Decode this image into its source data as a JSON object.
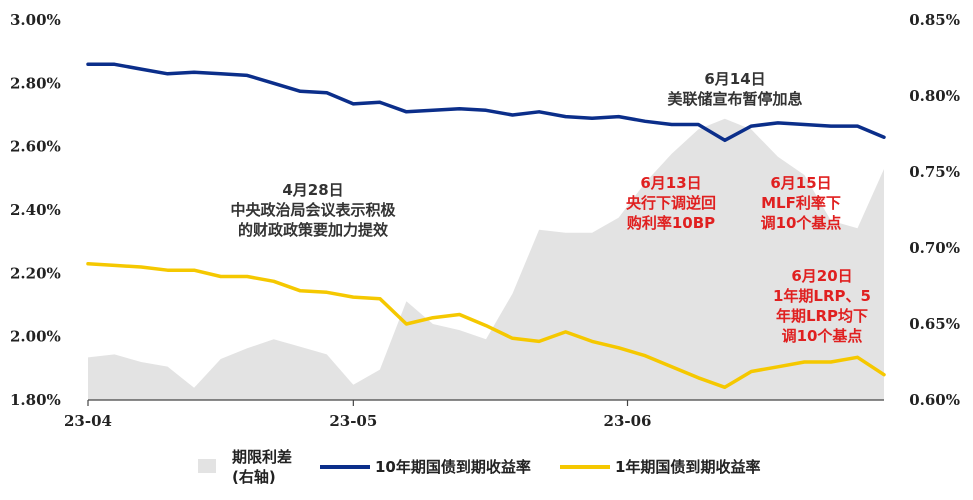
{
  "chart_data": {
    "type": "line",
    "x": [
      "23-04-01",
      "23-04-04",
      "23-04-07",
      "23-04-10",
      "23-04-13",
      "23-04-16",
      "23-04-19",
      "23-04-22",
      "23-04-25",
      "23-04-28",
      "23-05-01",
      "23-05-04",
      "23-05-07",
      "23-05-10",
      "23-05-13",
      "23-05-16",
      "23-05-19",
      "23-05-22",
      "23-05-25",
      "23-05-28",
      "23-05-31",
      "23-06-03",
      "23-06-06",
      "23-06-09",
      "23-06-12",
      "23-06-15",
      "23-06-18",
      "23-06-21",
      "23-06-24",
      "23-06-27",
      "23-06-29"
    ],
    "x_ticks": [
      "23-04",
      "23-05",
      "23-06"
    ],
    "y_left": {
      "ticks": [
        "1.80%",
        "2.00%",
        "2.20%",
        "2.40%",
        "2.60%",
        "2.80%",
        "3.00%"
      ],
      "ylim": [
        1.8,
        3.0
      ]
    },
    "y_right": {
      "ticks": [
        "0.60%",
        "0.65%",
        "0.70%",
        "0.75%",
        "0.80%",
        "0.85%"
      ],
      "ylim": [
        0.6,
        0.85
      ]
    },
    "series": [
      {
        "name": "10年期国债到期收益率",
        "axis": "left",
        "color": "#0b2e8a",
        "values": [
          2.86,
          2.86,
          2.845,
          2.83,
          2.835,
          2.83,
          2.825,
          2.8,
          2.775,
          2.77,
          2.735,
          2.74,
          2.71,
          2.715,
          2.72,
          2.715,
          2.7,
          2.71,
          2.695,
          2.69,
          2.695,
          2.68,
          2.67,
          2.67,
          2.62,
          2.665,
          2.675,
          2.67,
          2.665,
          2.665,
          2.63
        ]
      },
      {
        "name": "1年期国债到期收益率",
        "axis": "left",
        "color": "#f5c800",
        "values": [
          2.23,
          2.225,
          2.22,
          2.21,
          2.21,
          2.19,
          2.19,
          2.175,
          2.145,
          2.14,
          2.125,
          2.12,
          2.04,
          2.06,
          2.07,
          2.035,
          1.995,
          1.985,
          2.015,
          1.985,
          1.965,
          1.94,
          1.905,
          1.87,
          1.84,
          1.89,
          1.905,
          1.92,
          1.92,
          1.935,
          1.88
        ]
      },
      {
        "name": "期限利差 (右轴)",
        "axis": "right",
        "color": "#e3e3e3",
        "type": "area",
        "values": [
          0.628,
          0.63,
          0.625,
          0.622,
          0.608,
          0.627,
          0.634,
          0.64,
          0.635,
          0.63,
          0.61,
          0.62,
          0.665,
          0.65,
          0.646,
          0.64,
          0.67,
          0.712,
          0.71,
          0.71,
          0.72,
          0.743,
          0.762,
          0.778,
          0.785,
          0.778,
          0.76,
          0.748,
          0.718,
          0.713,
          0.752
        ]
      }
    ],
    "annotations": [
      {
        "lines": [
          "4月28日",
          "中央政治局会议表示积极",
          "的财政政策要加力提效"
        ],
        "color": "black"
      },
      {
        "lines": [
          "6月14日",
          "美联储宣布暂停加息"
        ],
        "color": "black"
      },
      {
        "lines": [
          "6月13日",
          "央行下调逆回",
          "购利率10BP"
        ],
        "color": "red"
      },
      {
        "lines": [
          "6月15日",
          "MLF利率下",
          "调10个基点"
        ],
        "color": "red"
      },
      {
        "lines": [
          "6月20日",
          "1年期LRP、5",
          "年期LRP均下",
          "调10个基点"
        ],
        "color": "red"
      }
    ],
    "legend": {
      "position": "bottom",
      "items": [
        {
          "label_lines": [
            "期限利差",
            "(右轴)"
          ],
          "kind": "area"
        },
        {
          "label_lines": [
            "10年期国债到期收益率"
          ],
          "kind": "line-blue"
        },
        {
          "label_lines": [
            "1年期国债到期收益率"
          ],
          "kind": "line-yellow"
        }
      ]
    },
    "grid": false
  }
}
